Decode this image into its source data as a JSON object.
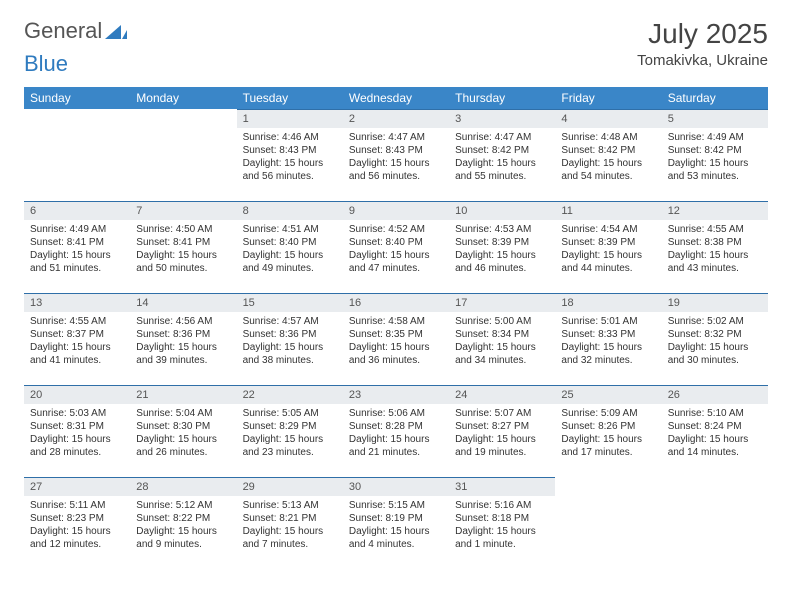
{
  "logo": {
    "part1": "General",
    "part2": "Blue"
  },
  "title": "July 2025",
  "location": "Tomakivka, Ukraine",
  "colors": {
    "header_bg": "#3a86c8",
    "header_text": "#ffffff",
    "daynum_bg": "#e9ecef",
    "row_divider": "#2f6fa8",
    "text": "#333333",
    "logo_gray": "#555555",
    "logo_blue": "#2f7bbf",
    "background": "#ffffff"
  },
  "typography": {
    "title_fontsize": 28,
    "location_fontsize": 15,
    "header_fontsize": 12,
    "daynum_fontsize": 11,
    "body_fontsize": 10
  },
  "day_headers": [
    "Sunday",
    "Monday",
    "Tuesday",
    "Wednesday",
    "Thursday",
    "Friday",
    "Saturday"
  ],
  "weeks": [
    [
      null,
      null,
      {
        "n": "1",
        "sr": "4:46 AM",
        "ss": "8:43 PM",
        "dl": "15 hours and 56 minutes."
      },
      {
        "n": "2",
        "sr": "4:47 AM",
        "ss": "8:43 PM",
        "dl": "15 hours and 56 minutes."
      },
      {
        "n": "3",
        "sr": "4:47 AM",
        "ss": "8:42 PM",
        "dl": "15 hours and 55 minutes."
      },
      {
        "n": "4",
        "sr": "4:48 AM",
        "ss": "8:42 PM",
        "dl": "15 hours and 54 minutes."
      },
      {
        "n": "5",
        "sr": "4:49 AM",
        "ss": "8:42 PM",
        "dl": "15 hours and 53 minutes."
      }
    ],
    [
      {
        "n": "6",
        "sr": "4:49 AM",
        "ss": "8:41 PM",
        "dl": "15 hours and 51 minutes."
      },
      {
        "n": "7",
        "sr": "4:50 AM",
        "ss": "8:41 PM",
        "dl": "15 hours and 50 minutes."
      },
      {
        "n": "8",
        "sr": "4:51 AM",
        "ss": "8:40 PM",
        "dl": "15 hours and 49 minutes."
      },
      {
        "n": "9",
        "sr": "4:52 AM",
        "ss": "8:40 PM",
        "dl": "15 hours and 47 minutes."
      },
      {
        "n": "10",
        "sr": "4:53 AM",
        "ss": "8:39 PM",
        "dl": "15 hours and 46 minutes."
      },
      {
        "n": "11",
        "sr": "4:54 AM",
        "ss": "8:39 PM",
        "dl": "15 hours and 44 minutes."
      },
      {
        "n": "12",
        "sr": "4:55 AM",
        "ss": "8:38 PM",
        "dl": "15 hours and 43 minutes."
      }
    ],
    [
      {
        "n": "13",
        "sr": "4:55 AM",
        "ss": "8:37 PM",
        "dl": "15 hours and 41 minutes."
      },
      {
        "n": "14",
        "sr": "4:56 AM",
        "ss": "8:36 PM",
        "dl": "15 hours and 39 minutes."
      },
      {
        "n": "15",
        "sr": "4:57 AM",
        "ss": "8:36 PM",
        "dl": "15 hours and 38 minutes."
      },
      {
        "n": "16",
        "sr": "4:58 AM",
        "ss": "8:35 PM",
        "dl": "15 hours and 36 minutes."
      },
      {
        "n": "17",
        "sr": "5:00 AM",
        "ss": "8:34 PM",
        "dl": "15 hours and 34 minutes."
      },
      {
        "n": "18",
        "sr": "5:01 AM",
        "ss": "8:33 PM",
        "dl": "15 hours and 32 minutes."
      },
      {
        "n": "19",
        "sr": "5:02 AM",
        "ss": "8:32 PM",
        "dl": "15 hours and 30 minutes."
      }
    ],
    [
      {
        "n": "20",
        "sr": "5:03 AM",
        "ss": "8:31 PM",
        "dl": "15 hours and 28 minutes."
      },
      {
        "n": "21",
        "sr": "5:04 AM",
        "ss": "8:30 PM",
        "dl": "15 hours and 26 minutes."
      },
      {
        "n": "22",
        "sr": "5:05 AM",
        "ss": "8:29 PM",
        "dl": "15 hours and 23 minutes."
      },
      {
        "n": "23",
        "sr": "5:06 AM",
        "ss": "8:28 PM",
        "dl": "15 hours and 21 minutes."
      },
      {
        "n": "24",
        "sr": "5:07 AM",
        "ss": "8:27 PM",
        "dl": "15 hours and 19 minutes."
      },
      {
        "n": "25",
        "sr": "5:09 AM",
        "ss": "8:26 PM",
        "dl": "15 hours and 17 minutes."
      },
      {
        "n": "26",
        "sr": "5:10 AM",
        "ss": "8:24 PM",
        "dl": "15 hours and 14 minutes."
      }
    ],
    [
      {
        "n": "27",
        "sr": "5:11 AM",
        "ss": "8:23 PM",
        "dl": "15 hours and 12 minutes."
      },
      {
        "n": "28",
        "sr": "5:12 AM",
        "ss": "8:22 PM",
        "dl": "15 hours and 9 minutes."
      },
      {
        "n": "29",
        "sr": "5:13 AM",
        "ss": "8:21 PM",
        "dl": "15 hours and 7 minutes."
      },
      {
        "n": "30",
        "sr": "5:15 AM",
        "ss": "8:19 PM",
        "dl": "15 hours and 4 minutes."
      },
      {
        "n": "31",
        "sr": "5:16 AM",
        "ss": "8:18 PM",
        "dl": "15 hours and 1 minute."
      },
      null,
      null
    ]
  ],
  "labels": {
    "sunrise": "Sunrise:",
    "sunset": "Sunset:",
    "daylight": "Daylight:"
  }
}
